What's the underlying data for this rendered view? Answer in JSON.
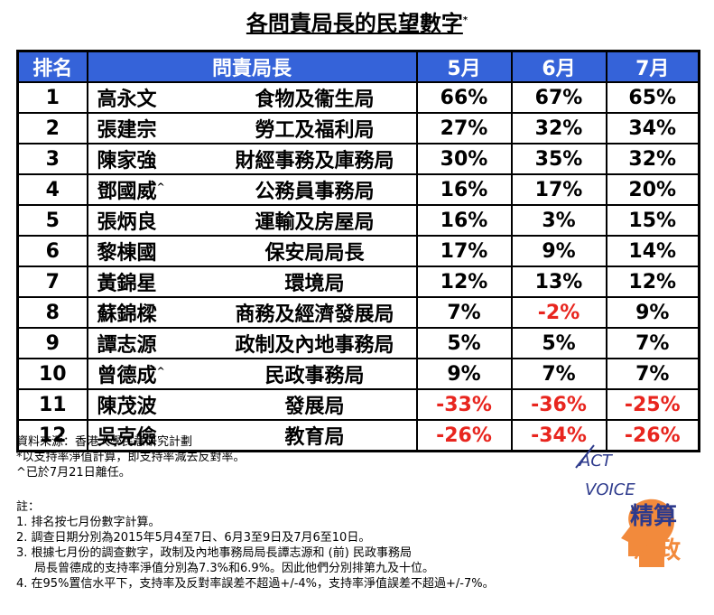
{
  "title": "各問責局長的民望數字",
  "title_note": "*",
  "table": {
    "header": [
      "排名",
      "問責局長",
      "5月",
      "6月",
      "7月"
    ],
    "rows": [
      {
        "rank": "1",
        "name": "高永文",
        "post": "食物及衞生局",
        "values": [
          "66%",
          "67%",
          "65%"
        ]
      },
      {
        "rank": "2",
        "name": "張建宗",
        "post": "勞工及福利局",
        "values": [
          "27%",
          "32%",
          "34%"
        ]
      },
      {
        "rank": "3",
        "name": "陳家強",
        "post": "財經事務及庫務局",
        "values": [
          "30%",
          "35%",
          "32%"
        ]
      },
      {
        "rank": "4",
        "name": "鄧國威",
        "name_note": "^",
        "post": "公務員事務局",
        "values": [
          "16%",
          "17%",
          "20%"
        ]
      },
      {
        "rank": "5",
        "name": "張炳良",
        "post": "運輸及房屋局",
        "values": [
          "16%",
          "3%",
          "15%"
        ]
      },
      {
        "rank": "6",
        "name": "黎棟國",
        "post": "保安局局長",
        "values": [
          "17%",
          "9%",
          "14%"
        ]
      },
      {
        "rank": "7",
        "name": "黃錦星",
        "post": "環境局",
        "values": [
          "12%",
          "13%",
          "12%"
        ]
      },
      {
        "rank": "8",
        "name": "蘇錦樑",
        "post": "商務及經濟發展局",
        "values": [
          "7%",
          "-2%",
          "9%"
        ]
      },
      {
        "rank": "9",
        "name": "譚志源",
        "post": "政制及內地事務局",
        "values": [
          "5%",
          "5%",
          "7%"
        ]
      },
      {
        "rank": "10",
        "name": "曾德成",
        "name_note": "^",
        "post": "民政事務局",
        "values": [
          "9%",
          "7%",
          "7%"
        ]
      },
      {
        "rank": "11",
        "name": "陳茂波",
        "post": "發展局",
        "values": [
          "-33%",
          "-36%",
          "-25%"
        ]
      },
      {
        "rank": "12",
        "name": "吳克儉",
        "post": "教育局",
        "values": [
          "-26%",
          "-34%",
          "-26%"
        ]
      }
    ],
    "negative_color": "#e8251e"
  },
  "footnotes": [
    "資料來源：香港大學民意研究計劃",
    "*以支持率淨值計算，即支持率減去反對率。",
    "^已於7月21日離任。"
  ],
  "notes_heading": "註：",
  "notes": [
    [
      "1. 排名按七月份數字計算。"
    ],
    [
      "2. 調查日期分別為2015年5月4至7日、6月3至9日及7月6至10日。"
    ],
    [
      "3. 根據七月份的調查數字，政制及內地事務局局長譚志源和 (前) 民政事務局",
      "局長曾德成的支持率淨值分別為7.3%和6.9%。因此他們分別排第九及十位。"
    ],
    [
      "4. 在95%置信水平下，支持率及反對率誤差不超過+/-4%，支持率淨值誤差不超過+/-7%。"
    ]
  ],
  "logo": [
    "ACT",
    "VOICE",
    "精算",
    "思政"
  ]
}
